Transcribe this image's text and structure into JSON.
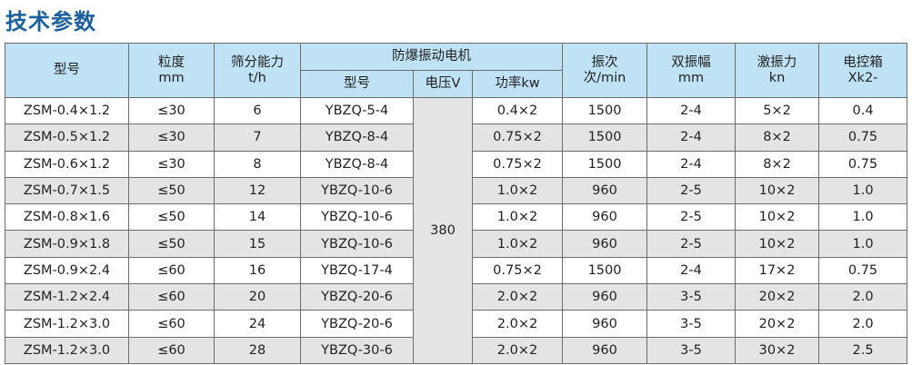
{
  "title": "技术参数",
  "headers": {
    "model": [
      "型号"
    ],
    "granularity": [
      "粒度",
      "mm"
    ],
    "capacity": [
      "筛分能力",
      "t/h"
    ],
    "motor_group": "防爆振动电机",
    "motor_model": "型号",
    "motor_voltage": "电压V",
    "motor_power": "功率kw",
    "frequency": [
      "振次",
      "次/min"
    ],
    "amplitude": [
      "双振幅",
      "mm"
    ],
    "force": [
      "激振力",
      "kn"
    ],
    "control_box": [
      "电控箱",
      "Xk2-"
    ]
  },
  "voltage": "380",
  "rows": [
    [
      "ZSM-0.4×1.2",
      "≤30",
      "6",
      "YBZQ-5-4",
      "0.4×2",
      "1500",
      "2-4",
      "5×2",
      "0.4"
    ],
    [
      "ZSM-0.5×1.2",
      "≤30",
      "7",
      "YBZQ-8-4",
      "0.75×2",
      "1500",
      "2-4",
      "8×2",
      "0.75"
    ],
    [
      "ZSM-0.6×1.2",
      "≤30",
      "8",
      "YBZQ-8-4",
      "0.75×2",
      "1500",
      "2-4",
      "8×2",
      "0.75"
    ],
    [
      "ZSM-0.7×1.5",
      "≤50",
      "12",
      "YBZQ-10-6",
      "1.0×2",
      "960",
      "2-5",
      "10×2",
      "1.0"
    ],
    [
      "ZSM-0.8×1.6",
      "≤50",
      "14",
      "YBZQ-10-6",
      "1.0×2",
      "960",
      "2-5",
      "10×2",
      "1.0"
    ],
    [
      "ZSM-0.9×1.8",
      "≤50",
      "15",
      "YBZQ-10-6",
      "1.0×2",
      "960",
      "2-5",
      "10×2",
      "1.0"
    ],
    [
      "ZSM-0.9×2.4",
      "≤60",
      "16",
      "YBZQ-17-4",
      "0.75×2",
      "1500",
      "2-4",
      "17×2",
      "0.75"
    ],
    [
      "ZSM-1.2×2.4",
      "≤60",
      "20",
      "YBZQ-20-6",
      "2.0×2",
      "960",
      "3-5",
      "20×2",
      "2.0"
    ],
    [
      "ZSM-1.2×3.0",
      "≤60",
      "24",
      "YBZQ-20-6",
      "2.0×2",
      "960",
      "3-5",
      "20×2",
      "2.0"
    ],
    [
      "ZSM-1.2×3.0",
      "≤60",
      "28",
      "YBZQ-30-6",
      "2.0×2",
      "960",
      "3-5",
      "30×2",
      "2.5"
    ]
  ]
}
